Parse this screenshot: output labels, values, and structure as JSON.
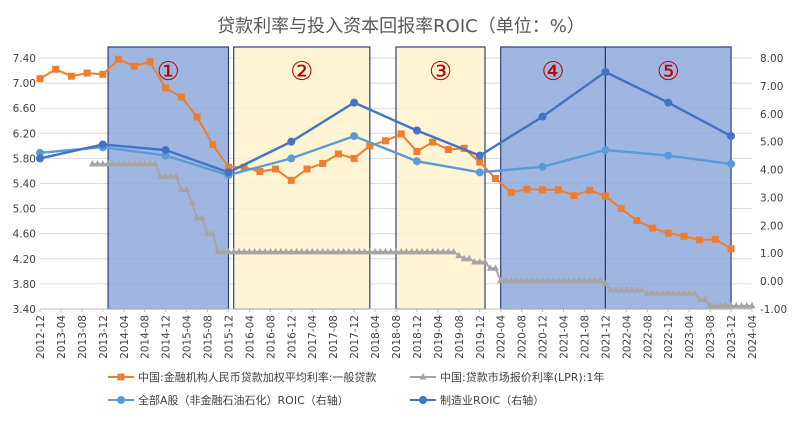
{
  "chart_data": {
    "type": "line",
    "title": "贷款利率与投入资本回报率ROIC（单位：%）",
    "x_labels": [
      "2012-12",
      "2013-04",
      "2013-08",
      "2013-12",
      "2014-04",
      "2014-08",
      "2014-12",
      "2015-04",
      "2015-08",
      "2015-12",
      "2016-04",
      "2016-08",
      "2016-12",
      "2017-04",
      "2017-08",
      "2017-12",
      "2018-04",
      "2018-08",
      "2018-12",
      "2019-04",
      "2019-08",
      "2019-12",
      "2020-04",
      "2020-08",
      "2020-12",
      "2021-04",
      "2021-08",
      "2021-12",
      "2022-04",
      "2022-08",
      "2022-12",
      "2023-04",
      "2023-08",
      "2023-12",
      "2024-04"
    ],
    "y_left": {
      "min": 3.4,
      "max": 7.4,
      "ticks": [
        "3.40",
        "3.80",
        "4.20",
        "4.60",
        "5.00",
        "5.40",
        "5.80",
        "6.20",
        "6.60",
        "7.00",
        "7.40"
      ]
    },
    "y_right": {
      "min": -1,
      "max": 8,
      "ticks": [
        "-1.00",
        "0.00",
        "1.00",
        "2.00",
        "3.00",
        "4.00",
        "5.00",
        "6.00",
        "7.00",
        "8.00"
      ]
    },
    "series": [
      {
        "name": "中国:金融机构人民币贷款加权平均利率:一般贷款",
        "axis": "left",
        "color": "#ed7d31",
        "marker": "square",
        "points": [
          [
            "2012-12",
            7.07
          ],
          [
            "2013-03",
            7.22
          ],
          [
            "2013-06",
            7.11
          ],
          [
            "2013-09",
            7.16
          ],
          [
            "2013-12",
            7.14
          ],
          [
            "2014-03",
            7.38
          ],
          [
            "2014-06",
            7.27
          ],
          [
            "2014-09",
            7.34
          ],
          [
            "2014-12",
            6.92
          ],
          [
            "2015-03",
            6.78
          ],
          [
            "2015-06",
            6.46
          ],
          [
            "2015-09",
            6.02
          ],
          [
            "2015-12",
            5.66
          ],
          [
            "2016-03",
            5.66
          ],
          [
            "2016-06",
            5.59
          ],
          [
            "2016-09",
            5.63
          ],
          [
            "2016-12",
            5.45
          ],
          [
            "2017-03",
            5.63
          ],
          [
            "2017-06",
            5.72
          ],
          [
            "2017-09",
            5.87
          ],
          [
            "2017-12",
            5.8
          ],
          [
            "2018-03",
            6.0
          ],
          [
            "2018-06",
            6.08
          ],
          [
            "2018-09",
            6.19
          ],
          [
            "2018-12",
            5.91
          ],
          [
            "2019-03",
            6.06
          ],
          [
            "2019-06",
            5.94
          ],
          [
            "2019-09",
            5.96
          ],
          [
            "2019-12",
            5.74
          ],
          [
            "2020-03",
            5.48
          ],
          [
            "2020-06",
            5.26
          ],
          [
            "2020-09",
            5.31
          ],
          [
            "2020-12",
            5.3
          ],
          [
            "2021-03",
            5.3
          ],
          [
            "2021-06",
            5.21
          ],
          [
            "2021-09",
            5.29
          ],
          [
            "2021-12",
            5.2
          ],
          [
            "2022-03",
            5.0
          ],
          [
            "2022-06",
            4.81
          ],
          [
            "2022-09",
            4.69
          ],
          [
            "2022-12",
            4.61
          ],
          [
            "2023-03",
            4.56
          ],
          [
            "2023-06",
            4.5
          ],
          [
            "2023-09",
            4.51
          ],
          [
            "2023-12",
            4.36
          ]
        ]
      },
      {
        "name": "中国:贷款市场报价利率(LPR):1年",
        "axis": "left",
        "color": "#a5a5a5",
        "marker": "triangle",
        "steps": [
          [
            "2013-10",
            5.71
          ],
          [
            "2014-11",
            5.51
          ],
          [
            "2015-03",
            5.3
          ],
          [
            "2015-05",
            5.1
          ],
          [
            "2015-06",
            4.85
          ],
          [
            "2015-08",
            4.6
          ],
          [
            "2015-10",
            4.31
          ],
          [
            "2019-08",
            4.25
          ],
          [
            "2019-09",
            4.2
          ],
          [
            "2019-11",
            4.15
          ],
          [
            "2020-02",
            4.05
          ],
          [
            "2020-04",
            3.85
          ],
          [
            "2021-12",
            3.8
          ],
          [
            "2022-01",
            3.7
          ],
          [
            "2022-08",
            3.65
          ],
          [
            "2023-06",
            3.55
          ],
          [
            "2023-08",
            3.45
          ],
          [
            "2024-04",
            3.45
          ]
        ]
      },
      {
        "name": "全部A股（非金融石油石化）ROIC（右轴）",
        "axis": "right",
        "color": "#5b9bd5",
        "marker": "circle",
        "points": [
          [
            "2012-12",
            4.6
          ],
          [
            "2013-12",
            4.8
          ],
          [
            "2014-12",
            4.5
          ],
          [
            "2015-12",
            3.8
          ],
          [
            "2016-12",
            4.4
          ],
          [
            "2017-12",
            5.2
          ],
          [
            "2018-12",
            4.3
          ],
          [
            "2019-12",
            3.9
          ],
          [
            "2020-12",
            4.1
          ],
          [
            "2021-12",
            4.7
          ],
          [
            "2022-12",
            4.5
          ],
          [
            "2023-12",
            4.2
          ]
        ]
      },
      {
        "name": "制造业ROIC（右轴）",
        "axis": "right",
        "color": "#4472c4",
        "marker": "circle",
        "points": [
          [
            "2012-12",
            4.4
          ],
          [
            "2013-12",
            4.9
          ],
          [
            "2014-12",
            4.7
          ],
          [
            "2015-12",
            3.9
          ],
          [
            "2016-12",
            5.0
          ],
          [
            "2017-12",
            6.4
          ],
          [
            "2018-12",
            5.4
          ],
          [
            "2019-12",
            4.5
          ],
          [
            "2020-12",
            5.9
          ],
          [
            "2021-12",
            7.5
          ],
          [
            "2022-12",
            6.4
          ],
          [
            "2023-12",
            5.2
          ]
        ]
      }
    ],
    "shaded_regions": [
      {
        "label": "①",
        "from": "2014-01",
        "to": "2015-12",
        "fill": "#8eaadb"
      },
      {
        "label": "②",
        "from": "2016-01",
        "to": "2018-03",
        "fill": "#fff2cc"
      },
      {
        "label": "③",
        "from": "2018-08",
        "to": "2020-01",
        "fill": "#fff2cc"
      },
      {
        "label": "④",
        "from": "2020-04",
        "to": "2021-12",
        "fill": "#8eaadb"
      },
      {
        "label": "⑤",
        "from": "2021-12",
        "to": "2023-12",
        "fill": "#8eaadb"
      }
    ],
    "grid": true,
    "legend_position": "bottom"
  }
}
